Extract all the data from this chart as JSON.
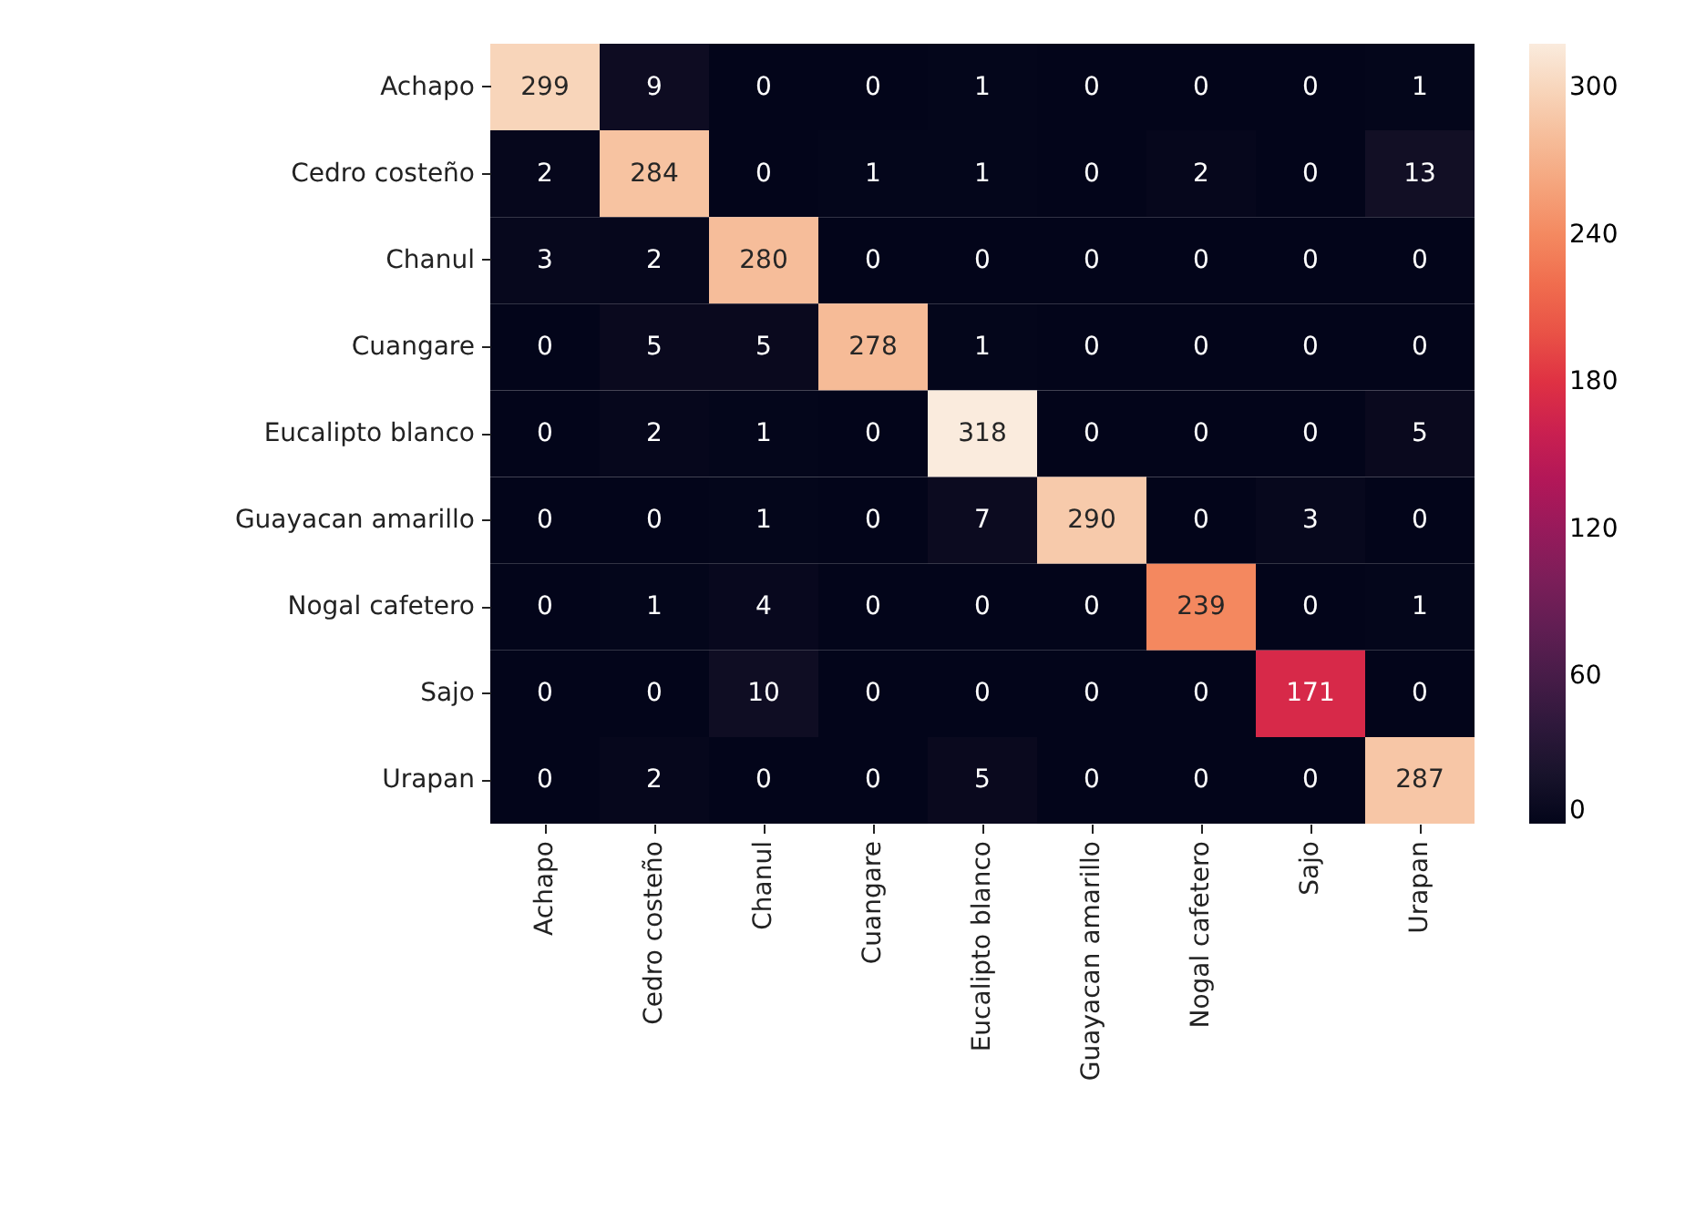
{
  "chart_data": {
    "type": "heatmap",
    "categories": [
      "Achapo",
      "Cedro costeño",
      "Chanul",
      "Cuangare",
      "Eucalipto blanco",
      "Guayacan amarillo",
      "Nogal cafetero",
      "Sajo",
      "Urapan"
    ],
    "y_categories": [
      "Achapo",
      "Cedro costeño",
      "Chanul",
      "Cuangare",
      "Eucalipto blanco",
      "Guayacan amarillo",
      "Nogal cafetero",
      "Sajo",
      "Urapan"
    ],
    "cells": [
      [
        299,
        9,
        0,
        0,
        1,
        0,
        0,
        0,
        1
      ],
      [
        2,
        284,
        0,
        1,
        1,
        0,
        2,
        0,
        13
      ],
      [
        3,
        2,
        280,
        0,
        0,
        0,
        0,
        0,
        0
      ],
      [
        0,
        5,
        5,
        278,
        1,
        0,
        0,
        0,
        0
      ],
      [
        0,
        2,
        1,
        0,
        318,
        0,
        0,
        0,
        5
      ],
      [
        0,
        0,
        1,
        0,
        7,
        290,
        0,
        3,
        0
      ],
      [
        0,
        1,
        4,
        0,
        0,
        0,
        239,
        0,
        1
      ],
      [
        0,
        0,
        10,
        0,
        0,
        0,
        0,
        171,
        0
      ],
      [
        0,
        2,
        0,
        0,
        5,
        0,
        0,
        0,
        287
      ]
    ],
    "clim": [
      0,
      318
    ],
    "cticks": [
      0,
      60,
      120,
      180,
      240,
      300
    ],
    "data_labels": true
  }
}
